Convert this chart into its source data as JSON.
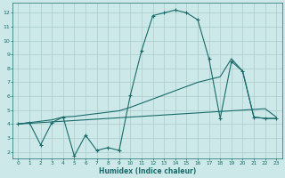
{
  "xlabel": "Humidex (Indice chaleur)",
  "bg_color": "#cce8e8",
  "grid_color": "#aacccc",
  "line_color": "#1a6b6b",
  "xlim": [
    -0.5,
    23.5
  ],
  "ylim": [
    1.5,
    12.7
  ],
  "xticks": [
    0,
    1,
    2,
    3,
    4,
    5,
    6,
    7,
    8,
    9,
    10,
    11,
    12,
    13,
    14,
    15,
    16,
    17,
    18,
    19,
    20,
    21,
    22,
    23
  ],
  "yticks": [
    2,
    3,
    4,
    5,
    6,
    7,
    8,
    9,
    10,
    11,
    12
  ],
  "s1_x": [
    0,
    1,
    2,
    3,
    4,
    5,
    6,
    7,
    8,
    9,
    10,
    11,
    12,
    13,
    14,
    15,
    16,
    17,
    18,
    19,
    20,
    21,
    22,
    23
  ],
  "s1_y": [
    4.0,
    4.1,
    2.5,
    4.1,
    4.5,
    1.7,
    3.2,
    2.1,
    2.3,
    2.1,
    6.1,
    9.3,
    11.8,
    12.0,
    12.2,
    12.0,
    11.5,
    8.7,
    4.4,
    8.5,
    7.8,
    4.5,
    4.4,
    4.4
  ],
  "s2_x": [
    0,
    1,
    2,
    3,
    4,
    5,
    6,
    7,
    8,
    9,
    10,
    11,
    12,
    13,
    14,
    15,
    16,
    17,
    18,
    19,
    20,
    21,
    22,
    23
  ],
  "s2_y": [
    4.0,
    4.05,
    4.1,
    4.15,
    4.2,
    4.25,
    4.3,
    4.35,
    4.4,
    4.45,
    4.5,
    4.55,
    4.6,
    4.65,
    4.7,
    4.75,
    4.8,
    4.85,
    4.9,
    4.95,
    5.0,
    5.05,
    5.1,
    4.5
  ],
  "s3_x": [
    0,
    1,
    2,
    3,
    4,
    5,
    6,
    7,
    8,
    9,
    10,
    11,
    12,
    13,
    14,
    15,
    16,
    17,
    18,
    19,
    20,
    21,
    22,
    23
  ],
  "s3_y": [
    4.0,
    4.1,
    4.2,
    4.3,
    4.5,
    4.55,
    4.65,
    4.75,
    4.85,
    4.95,
    5.2,
    5.5,
    5.8,
    6.1,
    6.4,
    6.7,
    7.0,
    7.2,
    7.4,
    8.7,
    7.8,
    4.5,
    4.4,
    4.4
  ]
}
